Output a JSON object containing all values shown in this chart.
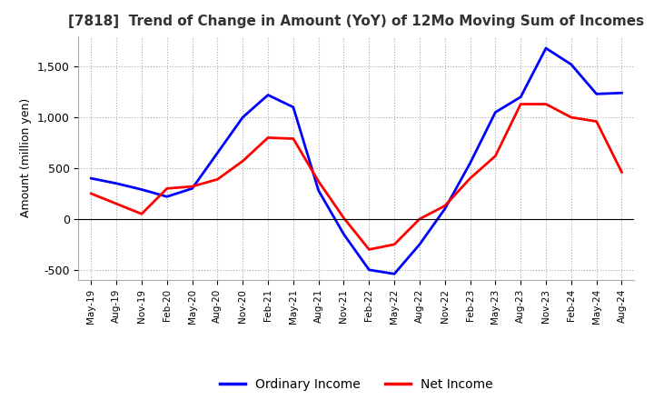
{
  "title": "[7818]  Trend of Change in Amount (YoY) of 12Mo Moving Sum of Incomes",
  "ylabel": "Amount (million yen)",
  "ylim": [
    -600,
    1800
  ],
  "yticks": [
    -500,
    0,
    500,
    1000,
    1500
  ],
  "legend_labels": [
    "Ordinary Income",
    "Net Income"
  ],
  "line_colors": [
    "blue",
    "red"
  ],
  "x_labels": [
    "May-19",
    "Aug-19",
    "Nov-19",
    "Feb-20",
    "May-20",
    "Aug-20",
    "Nov-20",
    "Feb-21",
    "May-21",
    "Aug-21",
    "Nov-21",
    "Feb-22",
    "May-22",
    "Aug-22",
    "Nov-22",
    "Feb-23",
    "May-23",
    "Aug-23",
    "Nov-23",
    "Feb-24",
    "May-24",
    "Aug-24"
  ],
  "ordinary_income": [
    400,
    350,
    290,
    220,
    300,
    650,
    1000,
    1220,
    1100,
    280,
    -150,
    -500,
    -540,
    -250,
    100,
    550,
    1050,
    1200,
    1680,
    1520,
    1230,
    1240
  ],
  "net_income": [
    250,
    150,
    50,
    300,
    320,
    390,
    570,
    800,
    790,
    370,
    10,
    -300,
    -250,
    0,
    130,
    400,
    620,
    1130,
    1130,
    1000,
    960,
    460
  ]
}
